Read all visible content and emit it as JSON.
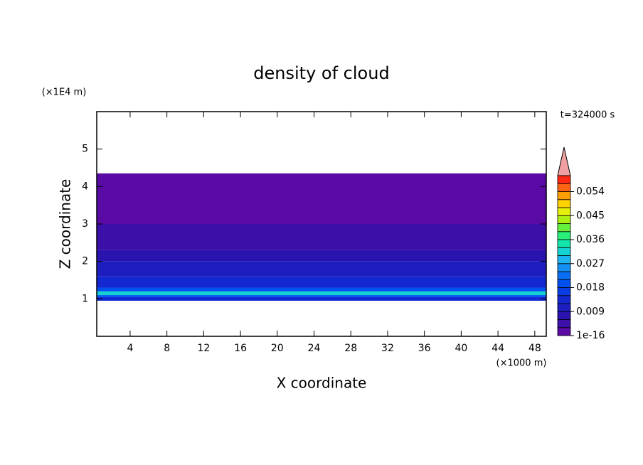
{
  "chart_data": {
    "type": "contour",
    "title": "density of cloud",
    "x_label": "X coordinate",
    "y_label": "Z coordinate",
    "x_unit": "(×1000 m)",
    "y_unit": "(×1E4 m)",
    "time_label": "t=324000 s",
    "xlim": [
      0.37,
      49.25
    ],
    "xticks": [
      4,
      8,
      12,
      16,
      20,
      24,
      28,
      32,
      36,
      40,
      44,
      48
    ],
    "ylim": [
      0,
      6
    ],
    "yticks": [
      1,
      2,
      3,
      4,
      5
    ],
    "z_edges": [
      0.95,
      1.05,
      1.1,
      1.2,
      1.3,
      1.6,
      2.0,
      2.3,
      3.0,
      4.35
    ],
    "values": [
      0.012,
      0.02,
      0.03,
      0.02,
      0.014,
      0.01,
      0.006,
      0.003,
      0.0005
    ],
    "colorbar": {
      "lim": [
        0,
        0.06
      ],
      "ticks": [
        1e-16,
        0.009,
        0.018,
        0.027,
        0.036,
        0.045,
        0.054
      ],
      "levels": [
        0,
        0.003,
        0.006,
        0.009,
        0.012,
        0.015,
        0.018,
        0.021,
        0.024,
        0.027,
        0.03,
        0.033,
        0.036,
        0.039,
        0.042,
        0.045,
        0.048,
        0.051,
        0.054,
        0.057
      ],
      "colors": [
        "#5a0aa5",
        "#3c10a8",
        "#2a14b0",
        "#1e1ec0",
        "#1428d2",
        "#0a3ce6",
        "#0050f0",
        "#0a6ef5",
        "#1490f5",
        "#1eb4f0",
        "#14d2d2",
        "#14e6aa",
        "#28f078",
        "#64f03c",
        "#aaf014",
        "#e6f00a",
        "#ffd200",
        "#ffa000",
        "#ff6414",
        "#ff2814"
      ],
      "extend_color": "#f0a0a0"
    }
  }
}
